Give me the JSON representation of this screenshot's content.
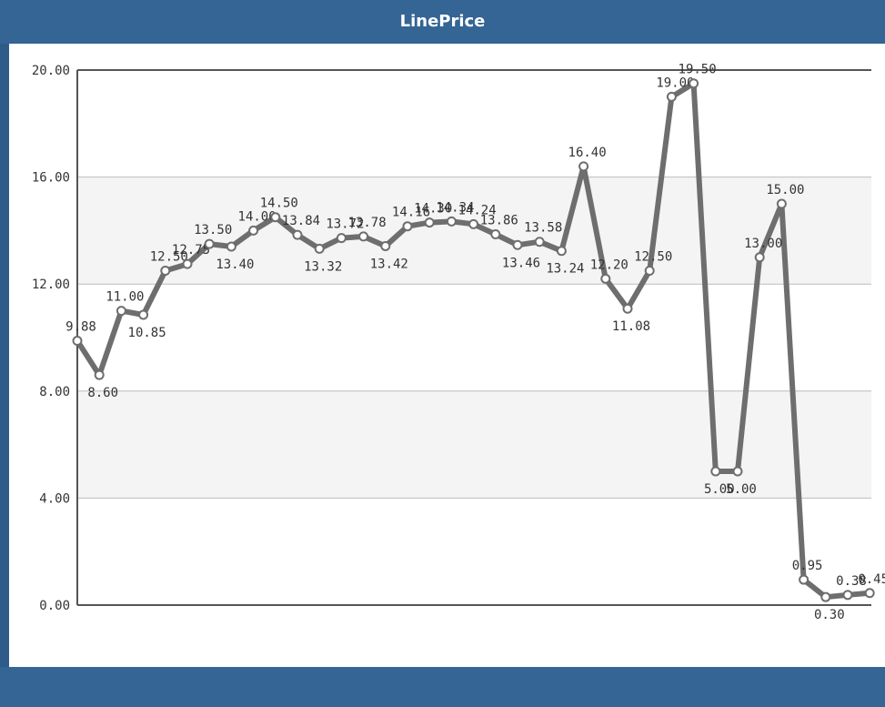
{
  "header": {
    "title": "LinePrice"
  },
  "colors": {
    "frame": "#2f5b8a",
    "header": "#346594",
    "line": "#6e6e6e",
    "band": "#f4f4f4",
    "grid": "#bbbbbb"
  },
  "chart_data": {
    "type": "line",
    "title": "LinePrice",
    "ylim": [
      0,
      20
    ],
    "yticks": [
      "0.00",
      "4.00",
      "8.00",
      "12.00",
      "16.00",
      "20.00"
    ],
    "grid": true,
    "series": [
      {
        "values": [
          9.88,
          8.6,
          11.0,
          10.85,
          12.5,
          12.75,
          13.5,
          13.4,
          14.0,
          14.5,
          13.84,
          13.32,
          13.72,
          13.78,
          13.42,
          14.16,
          14.3,
          14.34,
          14.24,
          13.86,
          13.46,
          13.58,
          13.24,
          16.4,
          12.2,
          11.08,
          12.5,
          19.0,
          19.5,
          5.0,
          5.0,
          13.0,
          15.0,
          0.95,
          0.3,
          0.38,
          0.45
        ],
        "labels": [
          "9.88",
          "8.60",
          "11.00",
          "10.85",
          "12.50",
          "12.75",
          "13.50",
          "13.40",
          "14.00",
          "14.50",
          "13.84",
          "13.32",
          "13.72",
          "13.78",
          "13.42",
          "14.16",
          "14.30",
          "14.34",
          "14.24",
          "13.86",
          "13.46",
          "13.58",
          "13.24",
          "16.40",
          "12.20",
          "11.08",
          "12.50",
          "19.00",
          "19.50",
          "5.00",
          "5.00",
          "13.00",
          "15.00",
          "0.95",
          "0.30",
          "0.38",
          "0.45"
        ]
      }
    ]
  }
}
